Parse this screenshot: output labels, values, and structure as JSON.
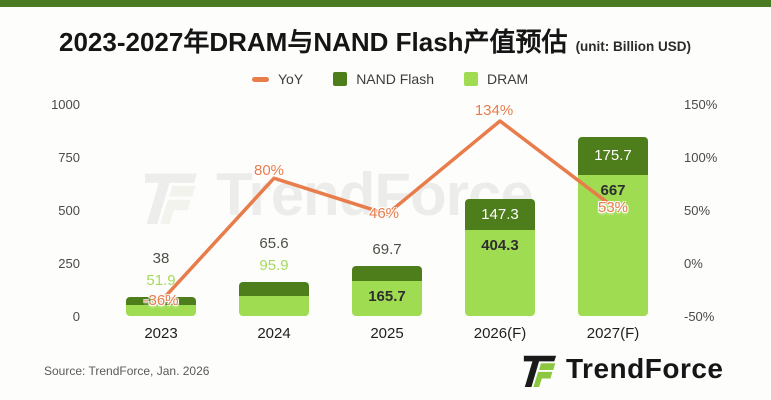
{
  "header": {
    "title": "2023-2027年DRAM与NAND Flash产值预估",
    "unit": "(unit: Billion USD)"
  },
  "colors": {
    "top_bar": "#4a7b22",
    "dram": "#a0dc52",
    "nand": "#4e7d1c",
    "yoy": "#e87c4b",
    "nand_outside_label": "#4d4f46",
    "dram_outside_label": "#a6d95f",
    "inside_dark_label": "#2e2e2e",
    "inside_light_label": "#ffffff",
    "logo_green": "#8dc63f"
  },
  "legend": [
    {
      "label": "YoY",
      "swatch": "line",
      "color": "#e87c4b"
    },
    {
      "label": "NAND Flash",
      "swatch": "square",
      "color": "#4e7d1c"
    },
    {
      "label": "DRAM",
      "swatch": "square",
      "color": "#a0dc52"
    }
  ],
  "chart_data": {
    "type": "bar",
    "subtype": "stacked-bars-with-yoy-line",
    "title": "2023-2027年DRAM与NAND Flash产值预估",
    "unit_note": "(unit: Billion USD)",
    "categories": [
      "2023",
      "2024",
      "2025",
      "2026(F)",
      "2027(F)"
    ],
    "series": [
      {
        "name": "DRAM",
        "type": "bar",
        "color": "#a0dc52",
        "values": [
          51.9,
          95.9,
          165.7,
          404.3,
          667
        ],
        "labels": [
          "51.9",
          "95.9",
          "165.7",
          "404.3",
          "667"
        ]
      },
      {
        "name": "NAND Flash",
        "type": "bar",
        "color": "#4e7d1c",
        "values": [
          38,
          65.6,
          69.7,
          147.3,
          175.7
        ],
        "labels": [
          "38",
          "65.6",
          "69.7",
          "147.3",
          "175.7"
        ]
      },
      {
        "name": "YoY",
        "type": "line",
        "color": "#e87c4b",
        "values": [
          -36,
          80,
          46,
          134,
          53
        ],
        "labels": [
          "-36%",
          "80%",
          "46%",
          "134%",
          "53%"
        ]
      }
    ],
    "left_axis": {
      "ticks": [
        "0",
        "250",
        "500",
        "750",
        "1000"
      ],
      "min": 0,
      "max": 1000
    },
    "right_axis": {
      "ticks": [
        "-50%",
        "0%",
        "50%",
        "100%",
        "150%"
      ],
      "min": -50,
      "max": 150
    },
    "legend_position": "top",
    "grid": false,
    "watermark": "TrendForce"
  },
  "footer": {
    "source": "Source: TrendForce, Jan. 2026",
    "logo_text": "TrendForce"
  }
}
